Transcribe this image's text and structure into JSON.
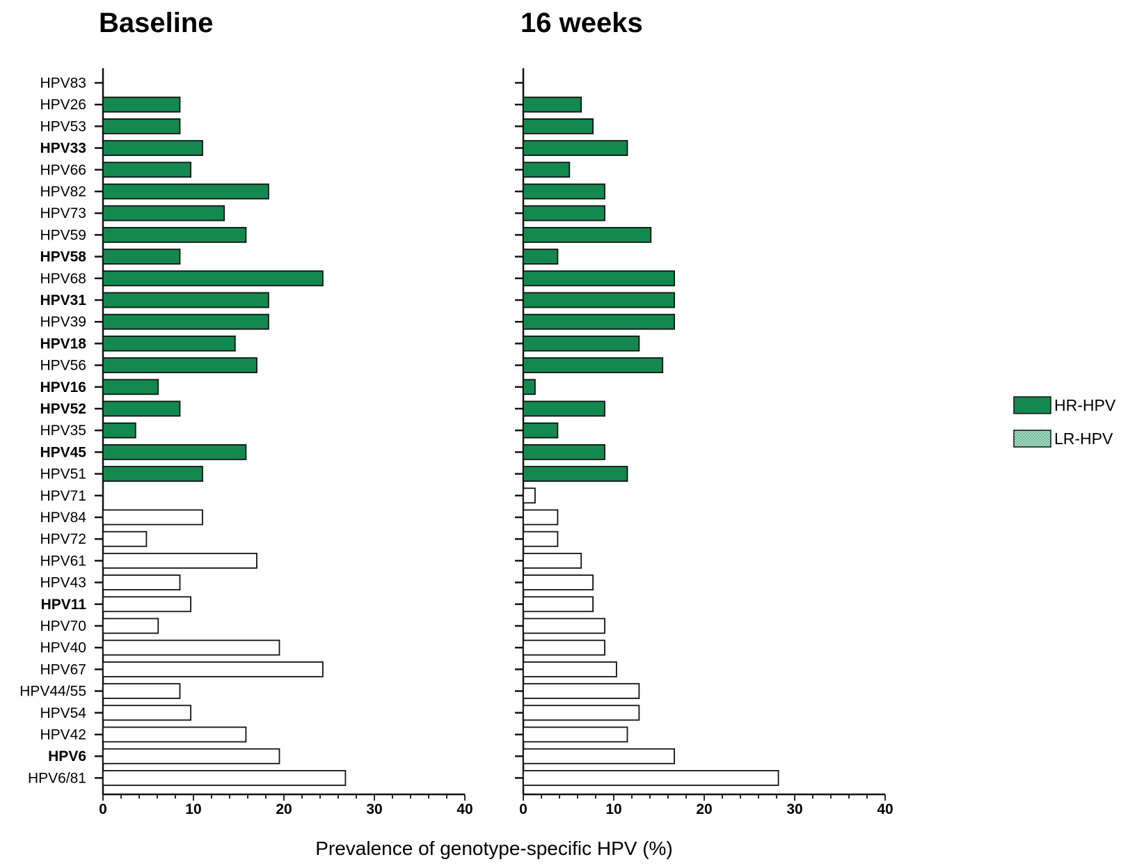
{
  "chart_data": {
    "type": "bar",
    "orientation": "horizontal",
    "xlabel": "Prevalence of genotype-specific HPV (%)",
    "xlim": [
      0,
      40
    ],
    "xticks": [
      0,
      10,
      20,
      30,
      40
    ],
    "categories": [
      "HPV83",
      "HPV26",
      "HPV53",
      "HPV33",
      "HPV66",
      "HPV82",
      "HPV73",
      "HPV59",
      "HPV58",
      "HPV68",
      "HPV31",
      "HPV39",
      "HPV18",
      "HPV56",
      "HPV16",
      "HPV52",
      "HPV35",
      "HPV45",
      "HPV51",
      "HPV71",
      "HPV84",
      "HPV72",
      "HPV61",
      "HPV43",
      "HPV11",
      "HPV70",
      "HPV40",
      "HPV67",
      "HPV44/55",
      "HPV54",
      "HPV42",
      "HPV6",
      "HPV6/81"
    ],
    "bold_categories": [
      "HPV33",
      "HPV58",
      "HPV31",
      "HPV18",
      "HPV16",
      "HPV52",
      "HPV45",
      "HPV11",
      "HPV6"
    ],
    "risk_group": [
      "HR",
      "HR",
      "HR",
      "HR",
      "HR",
      "HR",
      "HR",
      "HR",
      "HR",
      "HR",
      "HR",
      "HR",
      "HR",
      "HR",
      "HR",
      "HR",
      "HR",
      "HR",
      "HR",
      "LR",
      "LR",
      "LR",
      "LR",
      "LR",
      "LR",
      "LR",
      "LR",
      "LR",
      "LR",
      "LR",
      "LR",
      "LR",
      "LR"
    ],
    "panels": [
      {
        "title": "Baseline",
        "values": [
          0,
          8.5,
          8.5,
          11,
          9.7,
          18.3,
          13.4,
          15.8,
          8.5,
          24.3,
          18.3,
          18.3,
          14.6,
          17,
          6.1,
          8.5,
          3.6,
          15.8,
          11,
          0,
          11,
          4.8,
          17,
          8.5,
          9.7,
          6.1,
          19.5,
          24.3,
          8.5,
          9.7,
          15.8,
          19.5,
          26.8
        ]
      },
      {
        "title": "16 weeks",
        "values": [
          0,
          6.4,
          7.7,
          11.5,
          5.1,
          9,
          9,
          14.1,
          3.8,
          16.7,
          16.7,
          16.7,
          12.8,
          15.4,
          1.3,
          9,
          3.8,
          9,
          11.5,
          1.3,
          3.8,
          3.8,
          6.4,
          7.7,
          7.7,
          9,
          9,
          10.3,
          12.8,
          12.8,
          11.5,
          16.7,
          28.2
        ]
      }
    ],
    "legend": {
      "placement": "right",
      "entries": [
        {
          "label": "HR-HPV",
          "color": "#14894f"
        },
        {
          "label": "LR-HPV",
          "color": "#ffffff"
        }
      ]
    },
    "colors": {
      "hr_fill": "#14894f",
      "lr_fill": "#ffffff",
      "legend_lr_fill": "#8fcbb0",
      "outline": "#111111"
    }
  }
}
